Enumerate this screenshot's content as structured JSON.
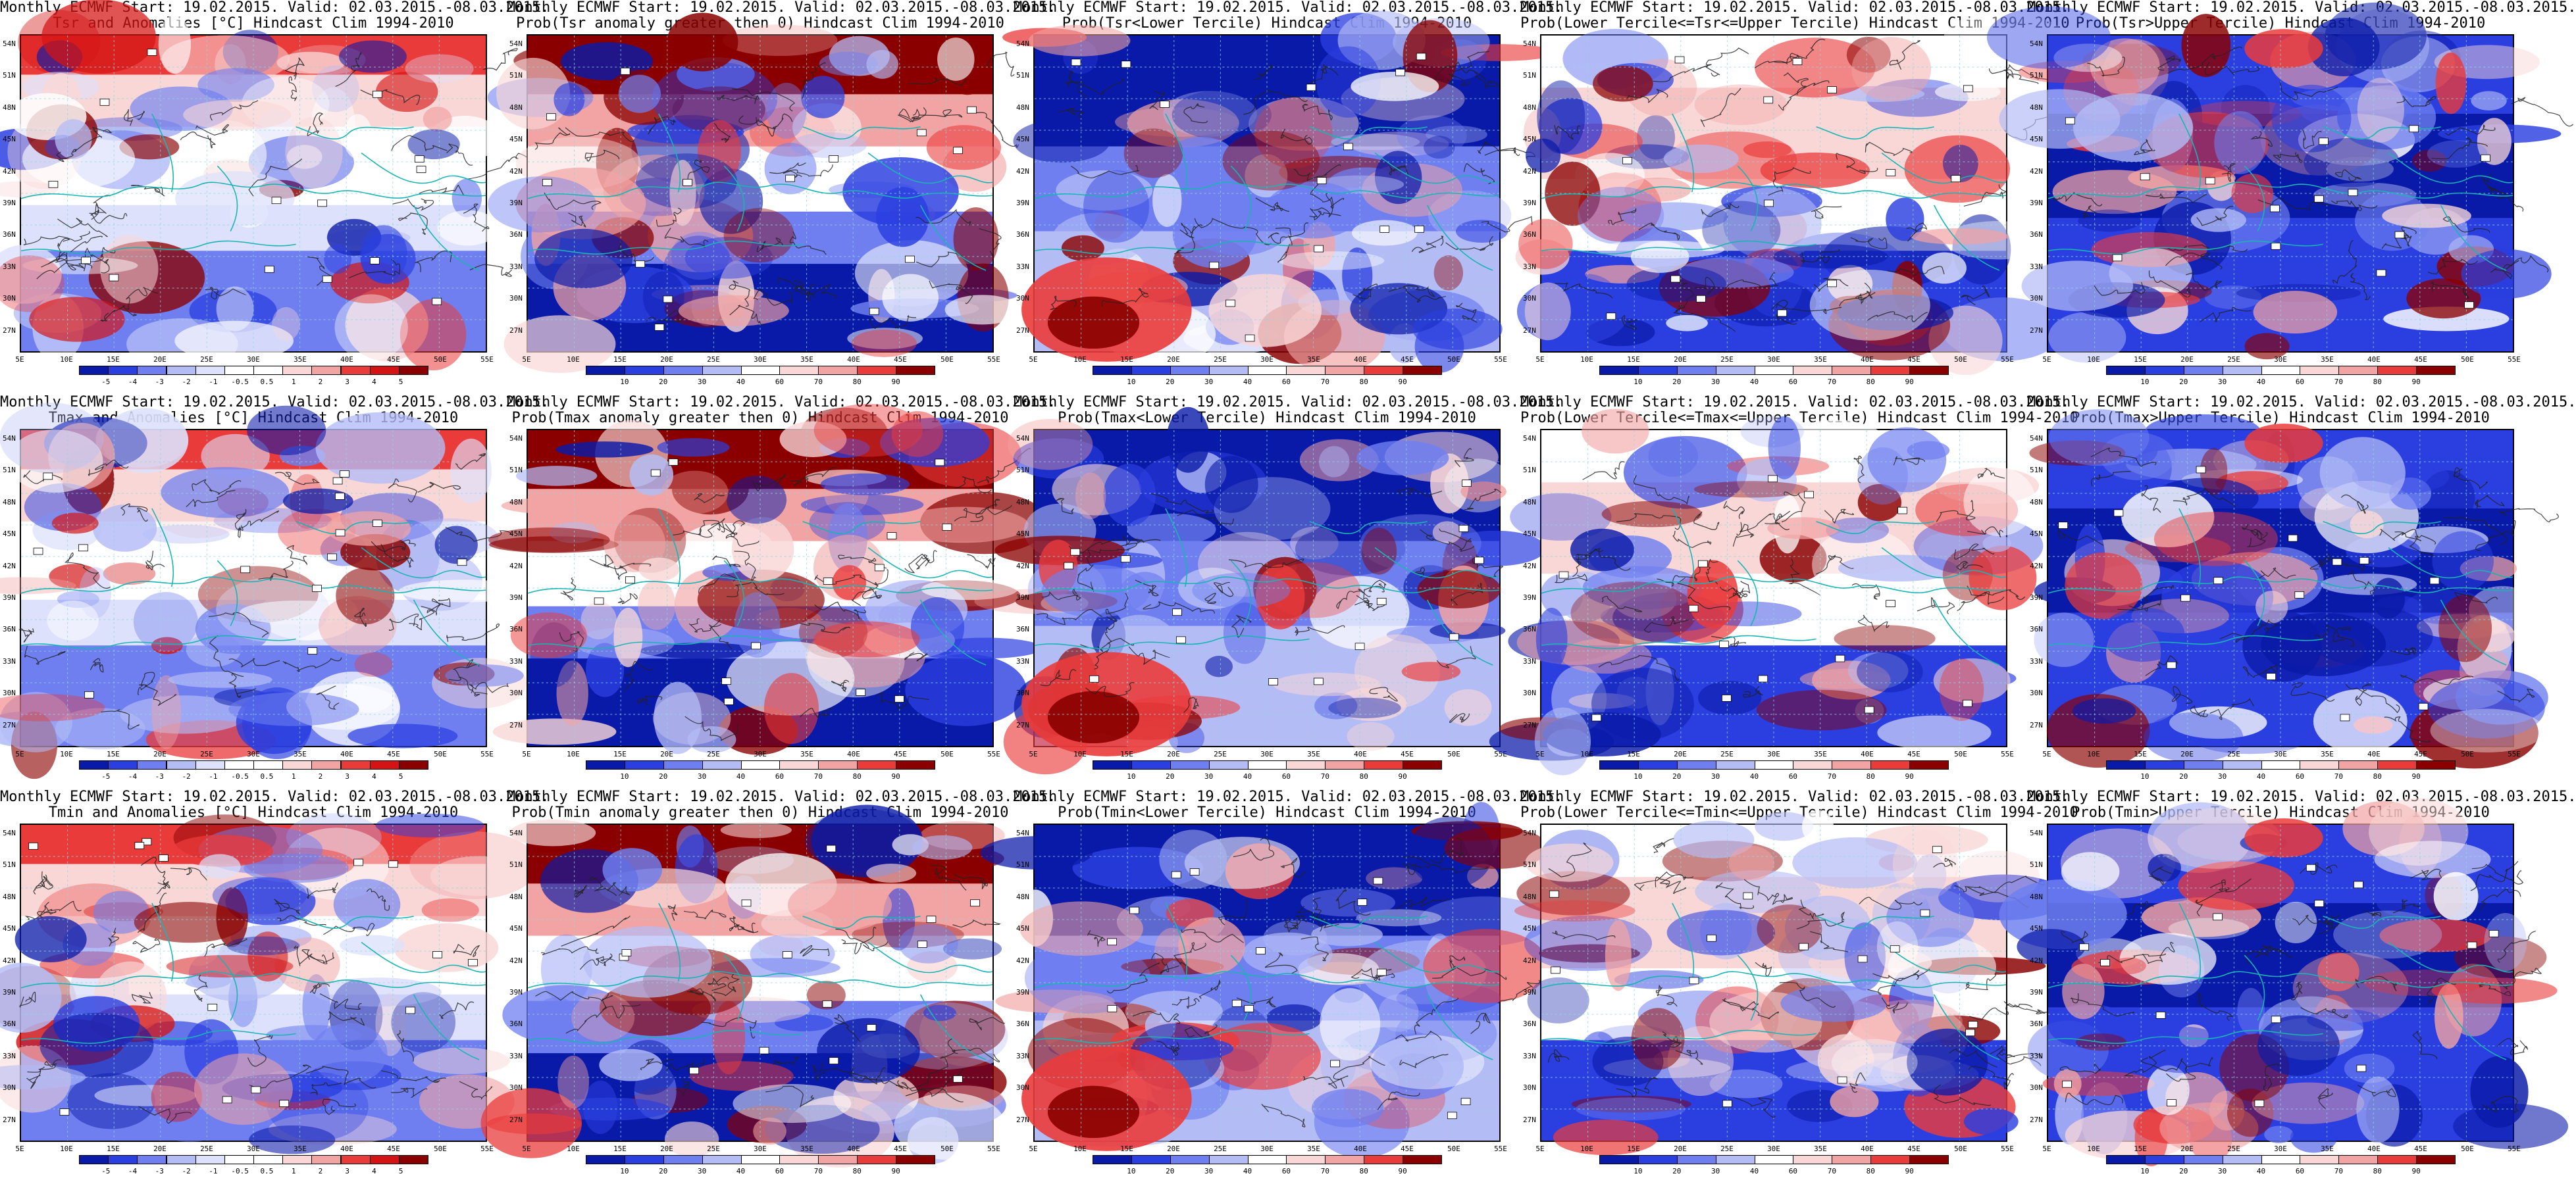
{
  "panels": [
    {
      "row": 0,
      "col": 0,
      "title1": "Monthly ECMWF Start: 19.02.2015. Valid: 02.03.2015.-08.03.2015.",
      "title2": "Tsr and Anomalies [°C] Hindcast Clim 1994-2010",
      "palette": "anomaly",
      "cbar_ticks": [
        "-5",
        "-4",
        "-3",
        "-2",
        "-1",
        "-0.5",
        "0.5",
        "1",
        "2",
        "3",
        "4",
        "5"
      ]
    },
    {
      "row": 0,
      "col": 1,
      "title1": "Monthly ECMWF Start: 19.02.2015. Valid: 02.03.2015.-08.03.2015.",
      "title2": "Prob(Tsr anomaly greater then 0) Hindcast Clim 1994-2010",
      "palette": "prob_high",
      "cbar_ticks": [
        "10",
        "20",
        "30",
        "40",
        "60",
        "70",
        "80",
        "90"
      ]
    },
    {
      "row": 0,
      "col": 2,
      "title1": "Monthly ECMWF Start: 19.02.2015. Valid: 02.03.2015.-08.03.2015.",
      "title2": "Prob(Tsr<Lower Tercile) Hindcast Clim 1994-2010",
      "palette": "prob_lower",
      "cbar_ticks": [
        "10",
        "20",
        "30",
        "40",
        "60",
        "70",
        "80",
        "90"
      ]
    },
    {
      "row": 0,
      "col": 3,
      "title1": "Monthly ECMWF Start: 19.02.2015. Valid: 02.03.2015.-08.03.2015.",
      "title2": "Prob(Lower Tercile<=Tsr<=Upper Tercile) Hindcast Clim 1994-2010",
      "palette": "prob_mid",
      "cbar_ticks": [
        "10",
        "20",
        "30",
        "40",
        "60",
        "70",
        "80",
        "90"
      ]
    },
    {
      "row": 0,
      "col": 4,
      "title1": "Monthly ECMWF Start: 19.02.2015. Valid: 02.03.2015.-08.03.2015.",
      "title2": "Prob(Tsr>Upper Tercile) Hindcast Clim 1994-2010",
      "palette": "prob_upper",
      "cbar_ticks": [
        "10",
        "20",
        "30",
        "40",
        "60",
        "70",
        "80",
        "90"
      ]
    },
    {
      "row": 1,
      "col": 0,
      "title1": "Monthly ECMWF Start: 19.02.2015. Valid: 02.03.2015.-08.03.2015.",
      "title2": "Tmax and Anomalies [°C] Hindcast Clim 1994-2010",
      "palette": "anomaly",
      "cbar_ticks": [
        "-5",
        "-4",
        "-3",
        "-2",
        "-1",
        "-0.5",
        "0.5",
        "1",
        "2",
        "3",
        "4",
        "5"
      ]
    },
    {
      "row": 1,
      "col": 1,
      "title1": "Monthly ECMWF Start: 19.02.2015. Valid: 02.03.2015.-08.03.2015.",
      "title2": "Prob(Tmax anomaly greater then 0) Hindcast Clim 1994-2010",
      "palette": "prob_high",
      "cbar_ticks": [
        "10",
        "20",
        "30",
        "40",
        "60",
        "70",
        "80",
        "90"
      ]
    },
    {
      "row": 1,
      "col": 2,
      "title1": "Monthly ECMWF Start: 19.02.2015. Valid: 02.03.2015.-08.03.2015.",
      "title2": "Prob(Tmax<Lower Tercile) Hindcast Clim 1994-2010",
      "palette": "prob_lower",
      "cbar_ticks": [
        "10",
        "20",
        "30",
        "40",
        "60",
        "70",
        "80",
        "90"
      ]
    },
    {
      "row": 1,
      "col": 3,
      "title1": "Monthly ECMWF Start: 19.02.2015. Valid: 02.03.2015.-08.03.2015.",
      "title2": "Prob(Lower Tercile<=Tmax<=Upper Tercile) Hindcast Clim 1994-2010",
      "palette": "prob_mid",
      "cbar_ticks": [
        "10",
        "20",
        "30",
        "40",
        "60",
        "70",
        "80",
        "90"
      ]
    },
    {
      "row": 1,
      "col": 4,
      "title1": "Monthly ECMWF Start: 19.02.2015. Valid: 02.03.2015.-08.03.2015.",
      "title2": "Prob(Tmax>Upper Tercile) Hindcast Clim 1994-2010",
      "palette": "prob_upper",
      "cbar_ticks": [
        "10",
        "20",
        "30",
        "40",
        "60",
        "70",
        "80",
        "90"
      ]
    },
    {
      "row": 2,
      "col": 0,
      "title1": "Monthly ECMWF Start: 19.02.2015. Valid: 02.03.2015.-08.03.2015.",
      "title2": "Tmin and Anomalies [°C] Hindcast Clim 1994-2010",
      "palette": "anomaly",
      "cbar_ticks": [
        "-5",
        "-4",
        "-3",
        "-2",
        "-1",
        "-0.5",
        "0.5",
        "1",
        "2",
        "3",
        "4",
        "5"
      ]
    },
    {
      "row": 2,
      "col": 1,
      "title1": "Monthly ECMWF Start: 19.02.2015. Valid: 02.03.2015.-08.03.2015.",
      "title2": "Prob(Tmin anomaly greater then 0) Hindcast Clim 1994-2010",
      "palette": "prob_high",
      "cbar_ticks": [
        "10",
        "20",
        "30",
        "40",
        "60",
        "70",
        "80",
        "90"
      ]
    },
    {
      "row": 2,
      "col": 2,
      "title1": "Monthly ECMWF Start: 19.02.2015. Valid: 02.03.2015.-08.03.2015.",
      "title2": "Prob(Tmin<Lower Tercile) Hindcast Clim 1994-2010",
      "palette": "prob_lower",
      "cbar_ticks": [
        "10",
        "20",
        "30",
        "40",
        "60",
        "70",
        "80",
        "90"
      ]
    },
    {
      "row": 2,
      "col": 3,
      "title1": "Monthly ECMWF Start: 19.02.2015. Valid: 02.03.2015.-08.03.2015.",
      "title2": "Prob(Lower Tercile<=Tmin<=Upper Tercile) Hindcast Clim 1994-2010",
      "palette": "prob_mid",
      "cbar_ticks": [
        "10",
        "20",
        "30",
        "40",
        "60",
        "70",
        "80",
        "90"
      ]
    },
    {
      "row": 2,
      "col": 4,
      "title1": "Monthly ECMWF Start: 19.02.2015. Valid: 02.03.2015.-08.03.2015.",
      "title2": "Prob(Tmin>Upper Tercile) Hindcast Clim 1994-2010",
      "palette": "prob_upper",
      "cbar_ticks": [
        "10",
        "20",
        "30",
        "40",
        "60",
        "70",
        "80",
        "90"
      ]
    }
  ],
  "lat_labels": [
    "54N",
    "51N",
    "48N",
    "45N",
    "42N",
    "39N",
    "36N",
    "33N",
    "30N",
    "27N"
  ],
  "lon_labels": [
    "5E",
    "10E",
    "15E",
    "20E",
    "25E",
    "30E",
    "35E",
    "40E",
    "45E",
    "50E",
    "55E"
  ],
  "colors": {
    "deep_blue": "#0a1aa8",
    "blue": "#2b3fe0",
    "mid_blue": "#6f7ff0",
    "light_blue": "#b4bcf6",
    "pale_blue": "#dde1fb",
    "white": "#ffffff",
    "pale_red": "#f9d7d7",
    "light_red": "#f2a3a3",
    "red": "#ea3b3b",
    "mid_red": "#d41414",
    "deep_red": "#8a0000",
    "coast": "#19b4b4",
    "contour": "#222222"
  }
}
